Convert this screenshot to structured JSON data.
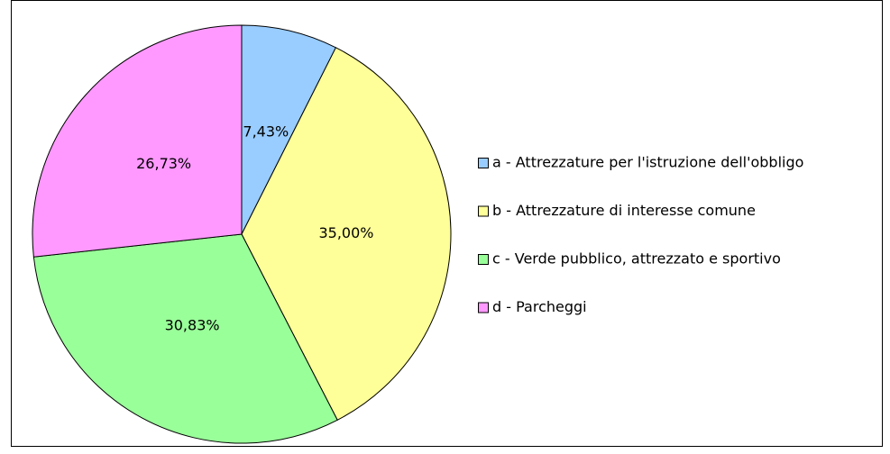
{
  "chart_data": {
    "type": "pie",
    "categories": [
      "a - Attrezzature per l'istruzione dell'obbligo",
      "b - Attrezzature di interesse comune",
      "c - Verde pubblico, attrezzato e sportivo",
      "d - Parcheggi"
    ],
    "values": [
      7.43,
      35.0,
      30.83,
      26.73
    ],
    "value_labels": [
      "7,43%",
      "35,00%",
      "30,83%",
      "26,73%"
    ],
    "colors": [
      "#99ccff",
      "#ffff99",
      "#99ff99",
      "#ff99ff"
    ],
    "legend": "right"
  }
}
